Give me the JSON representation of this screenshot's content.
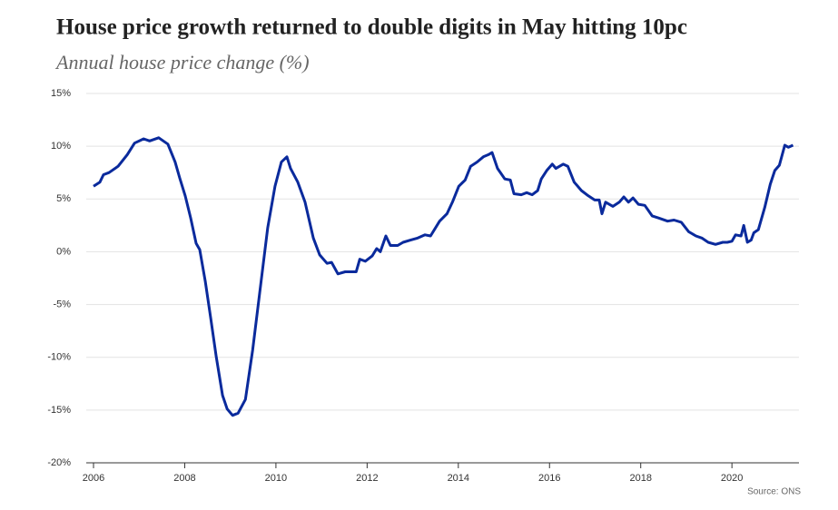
{
  "chart_data": {
    "type": "line",
    "title": "House price growth returned to double digits in May hitting 10pc",
    "subtitle": "Annual house price change (%)",
    "source": "Source: ONS",
    "xlim": [
      2006,
      2021.47
    ],
    "xticks": [
      2006,
      2008,
      2010,
      2012,
      2014,
      2016,
      2018,
      2020
    ],
    "ylim": [
      -20,
      15
    ],
    "yticks": [
      {
        "value": -20,
        "label": "-20%"
      },
      {
        "value": -15,
        "label": "-15%"
      },
      {
        "value": -10,
        "label": "-10%"
      },
      {
        "value": -5,
        "label": "-5%"
      },
      {
        "value": 0,
        "label": "0%"
      },
      {
        "value": 5,
        "label": "5%"
      },
      {
        "value": 10,
        "label": "10%"
      },
      {
        "value": 15,
        "label": "15%"
      }
    ],
    "grid": true,
    "x": [
      2006.0,
      2006.14,
      2006.22,
      2006.34,
      2006.54,
      2006.74,
      2006.9,
      2007.1,
      2007.23,
      2007.43,
      2007.63,
      2007.79,
      2007.89,
      2008.01,
      2008.13,
      2008.25,
      2008.33,
      2008.45,
      2008.57,
      2008.69,
      2008.83,
      2008.93,
      2009.05,
      2009.17,
      2009.33,
      2009.49,
      2009.65,
      2009.82,
      2009.98,
      2010.12,
      2010.24,
      2010.32,
      2010.48,
      2010.64,
      2010.82,
      2010.96,
      2011.12,
      2011.22,
      2011.36,
      2011.52,
      2011.76,
      2011.84,
      2011.96,
      2012.11,
      2012.21,
      2012.29,
      2012.41,
      2012.51,
      2012.67,
      2012.79,
      2012.95,
      2013.11,
      2013.27,
      2013.39,
      2013.59,
      2013.75,
      2013.87,
      2014.01,
      2014.15,
      2014.27,
      2014.41,
      2014.55,
      2014.66,
      2014.74,
      2014.86,
      2015.02,
      2015.14,
      2015.22,
      2015.38,
      2015.5,
      2015.62,
      2015.74,
      2015.82,
      2015.94,
      2016.06,
      2016.14,
      2016.3,
      2016.4,
      2016.54,
      2016.7,
      2016.85,
      2016.99,
      2017.09,
      2017.15,
      2017.23,
      2017.39,
      2017.53,
      2017.63,
      2017.73,
      2017.83,
      2017.95,
      2018.09,
      2018.25,
      2018.39,
      2018.59,
      2018.73,
      2018.89,
      2019.05,
      2019.21,
      2019.34,
      2019.48,
      2019.64,
      2019.8,
      2019.9,
      2020.0,
      2020.08,
      2020.2,
      2020.26,
      2020.34,
      2020.42,
      2020.48,
      2020.58,
      2020.72,
      2020.84,
      2020.94,
      2021.04,
      2021.16,
      2021.24,
      2021.34
    ],
    "series": [
      {
        "name": "Annual house price change",
        "color": "#0a2a9c",
        "values": [
          6.2,
          6.6,
          7.3,
          7.5,
          8.1,
          9.2,
          10.3,
          10.7,
          10.5,
          10.8,
          10.2,
          8.5,
          7.0,
          5.3,
          3.2,
          0.8,
          0.2,
          -2.8,
          -6.3,
          -9.9,
          -13.6,
          -14.9,
          -15.5,
          -15.3,
          -14.0,
          -9.3,
          -3.7,
          2.3,
          6.2,
          8.5,
          9.0,
          7.9,
          6.6,
          4.7,
          1.3,
          -0.3,
          -1.1,
          -1.0,
          -2.1,
          -1.9,
          -1.9,
          -0.7,
          -0.9,
          -0.4,
          0.3,
          0,
          1.5,
          0.6,
          0.6,
          0.9,
          1.1,
          1.3,
          1.6,
          1.5,
          2.9,
          3.6,
          4.7,
          6.2,
          6.8,
          8.1,
          8.5,
          9.0,
          9.2,
          9.4,
          7.9,
          6.9,
          6.8,
          5.5,
          5.4,
          5.6,
          5.4,
          5.8,
          6.9,
          7.7,
          8.3,
          7.9,
          8.3,
          8.1,
          6.6,
          5.8,
          5.3,
          4.9,
          4.9,
          3.6,
          4.7,
          4.3,
          4.7,
          5.2,
          4.7,
          5.1,
          4.5,
          4.4,
          3.4,
          3.2,
          2.9,
          3.0,
          2.8,
          1.9,
          1.5,
          1.3,
          0.9,
          0.7,
          0.9,
          0.9,
          1.0,
          1.6,
          1.5,
          2.5,
          0.9,
          1.1,
          1.8,
          2.1,
          4.2,
          6.4,
          7.7,
          8.2,
          10.1,
          9.9,
          10.1
        ]
      }
    ]
  }
}
